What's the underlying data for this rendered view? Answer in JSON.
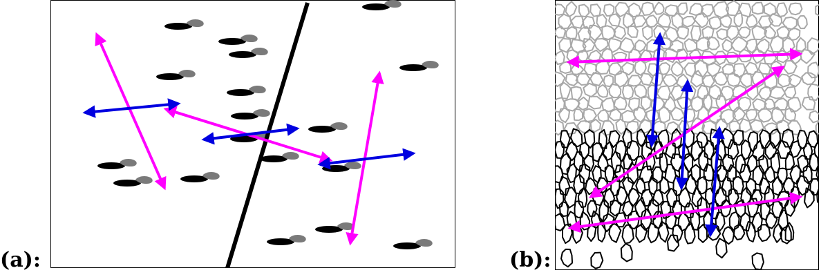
{
  "figure": {
    "panel_a_label": "(a):",
    "panel_b_label": "(b):"
  },
  "colors": {
    "magenta": "#ff00ff",
    "blue": "#0000e0",
    "cell_gray": "#a8a8a8",
    "cell_black": "#000000",
    "fish_gray": "#7a7a7a"
  }
}
